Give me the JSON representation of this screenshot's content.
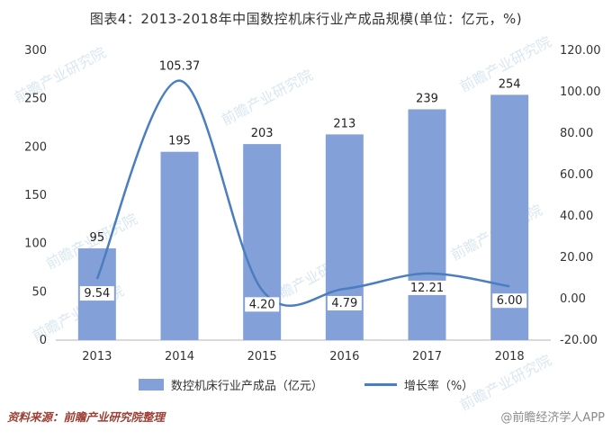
{
  "title": "图表4：2013-2018年中国数控机床行业产成品规模(单位：亿元，%)",
  "watermark": "前瞻产业研究院",
  "footer": {
    "source": "资料来源：前瞻产业研究院整理",
    "credit": "@前瞻经济学人APP"
  },
  "chart_data": {
    "type": "bar+line",
    "title": "图表4：2013-2018年中国数控机床行业产成品规模(单位：亿元，%)",
    "categories": [
      "2013",
      "2014",
      "2015",
      "2016",
      "2017",
      "2018"
    ],
    "series": [
      {
        "name": "数控机床行业产成品（亿元）",
        "type": "bar",
        "axis": "left",
        "color": "#84a0d8",
        "values": [
          95,
          195,
          203,
          213,
          239,
          254
        ],
        "labels": [
          "95",
          "195",
          "203",
          "213",
          "239",
          "254"
        ]
      },
      {
        "name": "增长率（%）",
        "type": "line",
        "axis": "right",
        "color": "#4a7ebf",
        "values": [
          9.54,
          105.37,
          4.2,
          4.79,
          12.21,
          6.0
        ],
        "labels": [
          "9.54",
          "105.37",
          "4.20",
          "4.79",
          "12.21",
          "6.00"
        ],
        "label_above": [
          false,
          true,
          false,
          false,
          false,
          false
        ]
      }
    ],
    "left_axis": {
      "min": 0,
      "max": 300,
      "ticks": [
        "300",
        "250",
        "200",
        "150",
        "100",
        "50",
        "0"
      ]
    },
    "right_axis": {
      "min": -20,
      "max": 120,
      "ticks": [
        "120.00",
        "100.00",
        "80.00",
        "60.00",
        "40.00",
        "20.00",
        "0.00",
        "-20.00"
      ]
    },
    "grid": false,
    "legend_position": "bottom"
  }
}
